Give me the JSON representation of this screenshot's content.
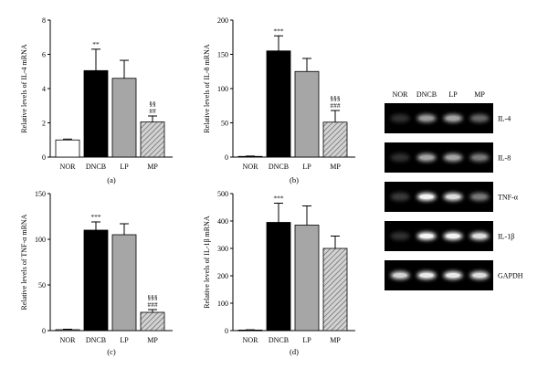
{
  "chart_data": [
    {
      "type": "bar",
      "panel": "(a)",
      "ylabel": "Relative levels of IL-4 mRNA",
      "categories": [
        "NOR",
        "DNCB",
        "LP",
        "MP"
      ],
      "values": [
        1.0,
        5.05,
        4.6,
        2.05
      ],
      "errors": [
        0.05,
        1.25,
        1.05,
        0.35
      ],
      "significance": [
        "",
        "**",
        "",
        "§§\n##"
      ],
      "ylim": [
        0,
        8
      ],
      "yticks": [
        "0",
        "2",
        "4",
        "6",
        "8"
      ],
      "fills": [
        "white",
        "black",
        "gray",
        "hatch"
      ]
    },
    {
      "type": "bar",
      "panel": "(b)",
      "ylabel": "Relative levels of IL-8 mRNA",
      "categories": [
        "NOR",
        "DNCB",
        "LP",
        "MP"
      ],
      "values": [
        1,
        155,
        125,
        51
      ],
      "errors": [
        0.5,
        22,
        19,
        17
      ],
      "significance": [
        "",
        "***",
        "",
        "§§§\n###"
      ],
      "ylim": [
        0,
        200
      ],
      "yticks": [
        "0",
        "50",
        "100",
        "150",
        "200"
      ],
      "fills": [
        "white",
        "black",
        "gray",
        "hatch"
      ]
    },
    {
      "type": "bar",
      "panel": "(c)",
      "ylabel": "Relative levels of TNF-α mRNA",
      "categories": [
        "NOR",
        "DNCB",
        "LP",
        "MP"
      ],
      "values": [
        1,
        110,
        105,
        20
      ],
      "errors": [
        0.5,
        9,
        12,
        3
      ],
      "significance": [
        "",
        "***",
        "",
        "§§§\n###"
      ],
      "ylim": [
        0,
        150
      ],
      "yticks": [
        "0",
        "50",
        "100",
        "150"
      ],
      "fills": [
        "white",
        "black",
        "gray",
        "hatch"
      ]
    },
    {
      "type": "bar",
      "panel": "(d)",
      "ylabel": "Relative levels of IL-1β mRNA",
      "categories": [
        "NOR",
        "DNCB",
        "LP",
        "MP"
      ],
      "values": [
        2,
        395,
        385,
        300
      ],
      "errors": [
        1,
        70,
        70,
        45
      ],
      "significance": [
        "",
        "***",
        "",
        ""
      ],
      "ylim": [
        0,
        500
      ],
      "yticks": [
        "0",
        "100",
        "200",
        "300",
        "400",
        "500"
      ],
      "fills": [
        "white",
        "black",
        "gray",
        "hatch"
      ]
    }
  ],
  "gel": {
    "columns": [
      "NOR",
      "DNCB",
      "LP",
      "MP"
    ],
    "rows": [
      {
        "gene": "IL-4",
        "intensity": [
          0.05,
          0.55,
          0.6,
          0.3
        ]
      },
      {
        "gene": "IL-8",
        "intensity": [
          0.05,
          0.6,
          0.6,
          0.4
        ]
      },
      {
        "gene": "TNF-α",
        "intensity": [
          0.1,
          0.95,
          0.85,
          0.4
        ]
      },
      {
        "gene": "IL-1β",
        "intensity": [
          0.05,
          0.95,
          0.95,
          0.85
        ]
      },
      {
        "gene": "GAPDH",
        "intensity": [
          0.8,
          0.9,
          0.9,
          0.85
        ]
      }
    ]
  },
  "colors": {
    "black": "#000000",
    "gray": "#a6a6a6",
    "white": "#ffffff",
    "hatch": "#cfcfcf",
    "gel_bg": "#000000"
  }
}
